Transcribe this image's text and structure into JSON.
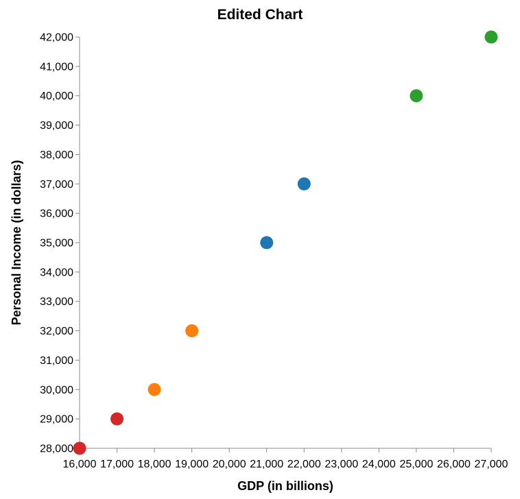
{
  "chart_data": {
    "type": "scatter",
    "title": "Edited Chart",
    "xlabel": "GDP (in billions)",
    "ylabel": "Personal Income (in dollars)",
    "xlim": [
      16000,
      27000
    ],
    "ylim": [
      28000,
      42000
    ],
    "x_ticks": [
      "16,000",
      "17,000",
      "18,000",
      "19,000",
      "20,000",
      "21,000",
      "22,000",
      "23,000",
      "24,000",
      "25,000",
      "26,000",
      "27,000"
    ],
    "y_ticks": [
      "28,000",
      "29,000",
      "30,000",
      "31,000",
      "32,000",
      "33,000",
      "34,000",
      "35,000",
      "36,000",
      "37,000",
      "38,000",
      "39,000",
      "40,000",
      "41,000",
      "42,000"
    ],
    "grid": false,
    "points": [
      {
        "x": 16000,
        "y": 28000,
        "color": "#d62728"
      },
      {
        "x": 17000,
        "y": 29000,
        "color": "#d62728"
      },
      {
        "x": 18000,
        "y": 30000,
        "color": "#ff7f0e"
      },
      {
        "x": 19000,
        "y": 32000,
        "color": "#ff7f0e"
      },
      {
        "x": 21000,
        "y": 35000,
        "color": "#1f77b4"
      },
      {
        "x": 22000,
        "y": 37000,
        "color": "#1f77b4"
      },
      {
        "x": 25000,
        "y": 40000,
        "color": "#2ca02c"
      },
      {
        "x": 27000,
        "y": 42000,
        "color": "#2ca02c"
      }
    ]
  }
}
